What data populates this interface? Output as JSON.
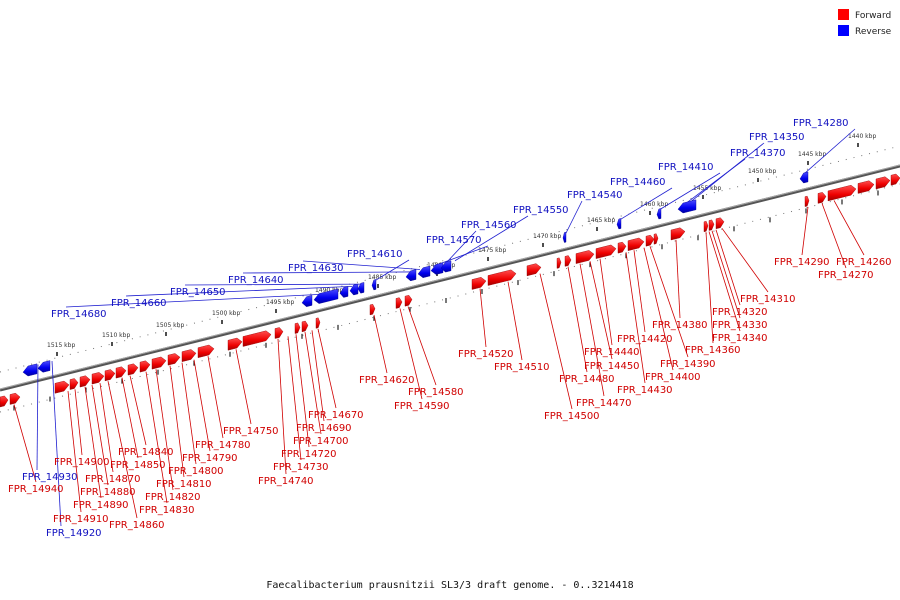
{
  "title": "Faecalibacterium prausnitzii SL3/3 draft genome. - 0..3214418",
  "legend": [
    {
      "label": "Forward",
      "color": "#ff0000"
    },
    {
      "label": "Reverse",
      "color": "#0000ff"
    }
  ],
  "ruler": [
    "1440 kbp",
    "1445 kbp",
    "1450 kbp",
    "1455 kbp",
    "1460 kbp",
    "1465 kbp",
    "1470 kbp",
    "1475 kbp",
    "1480 kbp",
    "1485 kbp",
    "1490 kbp",
    "1495 kbp",
    "1500 kbp",
    "1505 kbp",
    "1510 kbp",
    "1515 kbp"
  ],
  "genes_reverse": [
    "FPR_14280",
    "FPR_14350",
    "FPR_14370",
    "FPR_14410",
    "FPR_14460",
    "FPR_14540",
    "FPR_14550",
    "FPR_14560",
    "FPR_14570",
    "FPR_14610",
    "FPR_14630",
    "FPR_14640",
    "FPR_14650",
    "FPR_14660",
    "FPR_14680",
    "FPR_14930",
    "FPR_14920"
  ],
  "genes_forward": [
    "FPR_14290",
    "FPR_14260",
    "FPR_14270",
    "FPR_14310",
    "FPR_14320",
    "FPR_14330",
    "FPR_14340",
    "FPR_14360",
    "FPR_14380",
    "FPR_14390",
    "FPR_14400",
    "FPR_14420",
    "FPR_14430",
    "FPR_14440",
    "FPR_14450",
    "FPR_14470",
    "FPR_14480",
    "FPR_14500",
    "FPR_14510",
    "FPR_14520",
    "FPR_14580",
    "FPR_14590",
    "FPR_14620",
    "FPR_14670",
    "FPR_14690",
    "FPR_14700",
    "FPR_14720",
    "FPR_14730",
    "FPR_14740",
    "FPR_14750",
    "FPR_14780",
    "FPR_14790",
    "FPR_14800",
    "FPR_14810",
    "FPR_14820",
    "FPR_14830",
    "FPR_14840",
    "FPR_14850",
    "FPR_14860",
    "FPR_14870",
    "FPR_14880",
    "FPR_14890",
    "FPR_14900",
    "FPR_14910",
    "FPR_14940"
  ]
}
